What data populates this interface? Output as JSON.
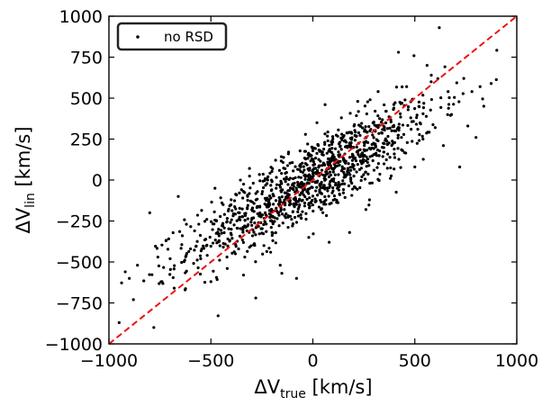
{
  "chart_data": {
    "type": "scatter",
    "xlabel": {
      "main": "ΔV",
      "sub": "true",
      "unit": " [km/s]"
    },
    "ylabel": {
      "main": "ΔV",
      "sub": "lin",
      "unit": " [km/s]"
    },
    "xlim": [
      -1000,
      1000
    ],
    "ylim": [
      -1000,
      1000
    ],
    "xticks": [
      -1000,
      -500,
      0,
      500,
      1000
    ],
    "xtick_labels": [
      "−1000",
      "−500",
      "0",
      "500",
      "1000"
    ],
    "yticks": [
      -1000,
      -750,
      -500,
      -250,
      0,
      250,
      500,
      750,
      1000
    ],
    "ytick_labels": [
      "−1000",
      "−750",
      "−500",
      "−250",
      "0",
      "250",
      "500",
      "750",
      "1000"
    ],
    "grid": false,
    "legend": {
      "position": "top-left",
      "entries": [
        "no RSD"
      ]
    },
    "series": [
      {
        "name": "no RSD",
        "marker": "dot",
        "color": "#000000",
        "n_points": 1200,
        "slope": 0.7,
        "x_sd": 300,
        "y_scatter_sd": 120,
        "points": [
          [
            -950,
            -870
          ],
          [
            -920,
            -560
          ],
          [
            -900,
            -600
          ],
          [
            -880,
            -730
          ],
          [
            -860,
            -520
          ],
          [
            -800,
            -200
          ],
          [
            -780,
            -900
          ],
          [
            -760,
            -470
          ],
          [
            -740,
            -620
          ],
          [
            -720,
            -370
          ],
          [
            -700,
            -480
          ],
          [
            -680,
            -660
          ],
          [
            -660,
            -100
          ],
          [
            -640,
            -340
          ],
          [
            -620,
            -270
          ],
          [
            -600,
            -420
          ],
          [
            -580,
            -310
          ],
          [
            -550,
            -480
          ],
          [
            -520,
            -240
          ],
          [
            -500,
            -620
          ],
          [
            -480,
            -50
          ],
          [
            -460,
            -370
          ],
          [
            -440,
            -150
          ],
          [
            -420,
            -540
          ],
          [
            -400,
            -300
          ],
          [
            -380,
            -450
          ],
          [
            -360,
            -200
          ],
          [
            -340,
            -580
          ],
          [
            -320,
            -100
          ],
          [
            -300,
            -240
          ],
          [
            -280,
            -720
          ],
          [
            -260,
            -160
          ],
          [
            -240,
            -400
          ],
          [
            -220,
            20
          ],
          [
            -200,
            -320
          ],
          [
            -180,
            -50
          ],
          [
            -160,
            -520
          ],
          [
            -140,
            -180
          ],
          [
            -120,
            160
          ],
          [
            -100,
            -280
          ],
          [
            -80,
            -600
          ],
          [
            -60,
            80
          ],
          [
            -40,
            -140
          ],
          [
            -20,
            -350
          ],
          [
            0,
            40
          ],
          [
            20,
            350
          ],
          [
            40,
            -180
          ],
          [
            60,
            460
          ],
          [
            80,
            -380
          ],
          [
            100,
            120
          ],
          [
            120,
            -50
          ],
          [
            140,
            380
          ],
          [
            160,
            20
          ],
          [
            180,
            -320
          ],
          [
            200,
            200
          ],
          [
            220,
            480
          ],
          [
            240,
            100
          ],
          [
            260,
            -180
          ],
          [
            280,
            300
          ],
          [
            300,
            60
          ],
          [
            320,
            540
          ],
          [
            340,
            200
          ],
          [
            360,
            420
          ],
          [
            380,
            10
          ],
          [
            400,
            300
          ],
          [
            420,
            780
          ],
          [
            440,
            180
          ],
          [
            460,
            570
          ],
          [
            480,
            380
          ],
          [
            500,
            80
          ],
          [
            520,
            450
          ],
          [
            540,
            250
          ],
          [
            560,
            700
          ],
          [
            580,
            600
          ],
          [
            600,
            320
          ],
          [
            620,
            930
          ],
          [
            640,
            210
          ],
          [
            680,
            400
          ],
          [
            720,
            80
          ],
          [
            740,
            620
          ],
          [
            760,
            330
          ],
          [
            780,
            540
          ],
          [
            800,
            260
          ],
          [
            820,
            570
          ]
        ]
      },
      {
        "name": "",
        "type": "line",
        "style": "dashed",
        "color": "#ee1111",
        "x": [
          -1000,
          1000
        ],
        "y": [
          -1000,
          1000
        ]
      }
    ]
  }
}
